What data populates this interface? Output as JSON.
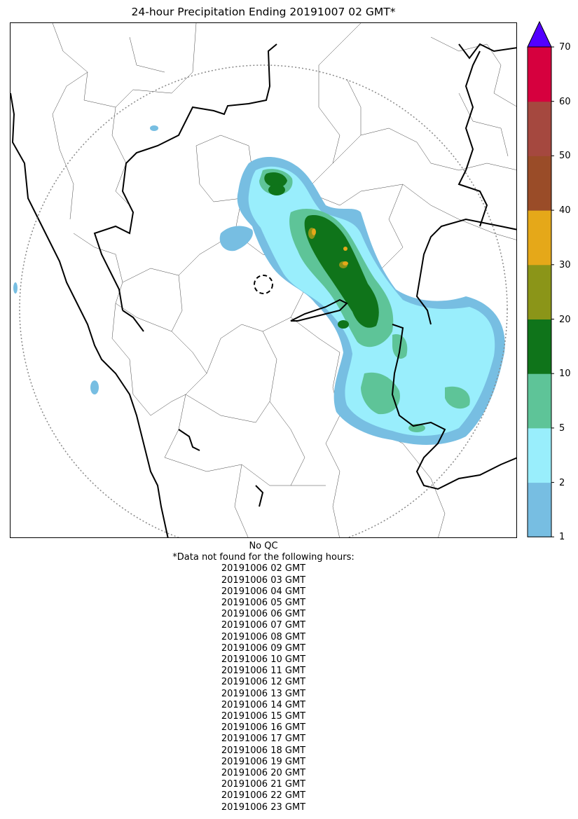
{
  "title": "24-hour Precipitation Ending 20191007 02 GMT*",
  "colorbar": {
    "ticks": [
      "1",
      "2",
      "5",
      "10",
      "20",
      "30",
      "40",
      "50",
      "60",
      "70"
    ],
    "colors": [
      "#77bee2",
      "#99eefc",
      "#5ec498",
      "#0f741a",
      "#8b9518",
      "#e5a819",
      "#9a4c28",
      "#a5483f",
      "#d6003e"
    ],
    "extend_color": "#5200ff"
  },
  "notes": {
    "qc": "No QC",
    "missing_header": "*Data not found for the following hours:",
    "missing_hours": [
      "20191006 02 GMT",
      "20191006 03 GMT",
      "20191006 04 GMT",
      "20191006 05 GMT",
      "20191006 06 GMT",
      "20191006 07 GMT",
      "20191006 08 GMT",
      "20191006 09 GMT",
      "20191006 10 GMT",
      "20191006 11 GMT",
      "20191006 12 GMT",
      "20191006 13 GMT",
      "20191006 14 GMT",
      "20191006 15 GMT",
      "20191006 16 GMT",
      "20191006 17 GMT",
      "20191006 18 GMT",
      "20191006 19 GMT",
      "20191006 20 GMT",
      "20191006 21 GMT",
      "20191006 22 GMT",
      "20191006 23 GMT"
    ]
  }
}
